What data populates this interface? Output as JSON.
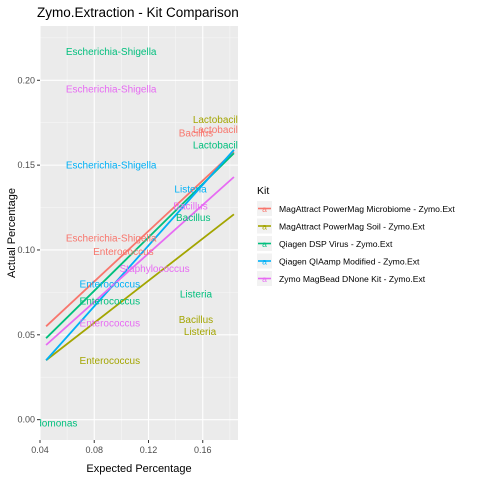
{
  "chart_data": {
    "type": "scatter",
    "title": "Zymo.Extraction - Kit Comparison",
    "xlabel": "Expected Percentage",
    "ylabel": "Actual Percentage",
    "xlim": [
      0.04,
      0.186
    ],
    "ylim": [
      -0.012,
      0.232
    ],
    "x_ticks": [
      0.04,
      0.08,
      0.12,
      0.16
    ],
    "x_tick_labels": [
      "0.04",
      "0.08",
      "0.12",
      "0.16"
    ],
    "y_ticks": [
      0.0,
      0.05,
      0.1,
      0.15,
      0.2
    ],
    "y_tick_labels": [
      "0.00",
      "0.05",
      "0.10",
      "0.15",
      "0.20"
    ],
    "grid": true,
    "background": "#ebebeb",
    "legend": {
      "title": "Kit",
      "position": "right",
      "key_glyph": "a"
    },
    "series": [
      {
        "name": "MagAttract PowerMag Microbiome - Zymo.Ext",
        "color": "#F8766D",
        "fit_line": [
          [
            0.0445,
            0.055
          ],
          [
            0.183,
            0.158
          ]
        ],
        "labels": [
          {
            "text": "Lactobacillus",
            "x": 0.174,
            "y": 0.171
          },
          {
            "text": "Bacillus",
            "x": 0.155,
            "y": 0.169
          },
          {
            "text": "Escherichia-Shigella",
            "x": 0.0925,
            "y": 0.107
          },
          {
            "text": "Enterococcus",
            "x": 0.1015,
            "y": 0.099
          }
        ]
      },
      {
        "name": "MagAttract PowerMag Soil - Zymo.Ext",
        "color": "#A3A500",
        "fit_line": [
          [
            0.0445,
            0.035
          ],
          [
            0.183,
            0.121
          ]
        ],
        "labels": [
          {
            "text": "Lactobacillus",
            "x": 0.174,
            "y": 0.177
          },
          {
            "text": "Bacillus",
            "x": 0.155,
            "y": 0.059
          },
          {
            "text": "Listeria",
            "x": 0.158,
            "y": 0.052
          },
          {
            "text": "Enterococcus",
            "x": 0.0915,
            "y": 0.035
          }
        ]
      },
      {
        "name": "Qiagen DSP Virus - Zymo.Ext",
        "color": "#00BF7D",
        "fit_line": [
          [
            0.0445,
            0.048
          ],
          [
            0.183,
            0.157
          ]
        ],
        "labels": [
          {
            "text": "Escherichia-Shigella",
            "x": 0.0925,
            "y": 0.217
          },
          {
            "text": "Lactobacillus",
            "x": 0.174,
            "y": 0.162
          },
          {
            "text": "Bacillus",
            "x": 0.153,
            "y": 0.119
          },
          {
            "text": "Listeria",
            "x": 0.155,
            "y": 0.074
          },
          {
            "text": "Enterococcus",
            "x": 0.0915,
            "y": 0.07
          },
          {
            "text": "Pseudomonas",
            "x": 0.044,
            "y": -0.002
          }
        ]
      },
      {
        "name": "Qiagen QIAamp  Modified - Zymo.Ext",
        "color": "#00B0F6",
        "fit_line": [
          [
            0.0445,
            0.035
          ],
          [
            0.183,
            0.159
          ]
        ],
        "labels": [
          {
            "text": "Escherichia-Shigella",
            "x": 0.0925,
            "y": 0.15
          },
          {
            "text": "Listeria",
            "x": 0.151,
            "y": 0.136
          },
          {
            "text": "Enterococcus",
            "x": 0.0915,
            "y": 0.08
          }
        ]
      },
      {
        "name": "Zymo MagBead DNone Kit - Zymo.Ext",
        "color": "#E76BF3",
        "fit_line": [
          [
            0.0445,
            0.044
          ],
          [
            0.183,
            0.143
          ]
        ],
        "labels": [
          {
            "text": "Escherichia-Shigella",
            "x": 0.0925,
            "y": 0.195
          },
          {
            "text": "Bacillus",
            "x": 0.151,
            "y": 0.126
          },
          {
            "text": "Staphylococcus",
            "x": 0.1245,
            "y": 0.089
          },
          {
            "text": "Enterococcus",
            "x": 0.0915,
            "y": 0.057
          }
        ]
      }
    ]
  }
}
